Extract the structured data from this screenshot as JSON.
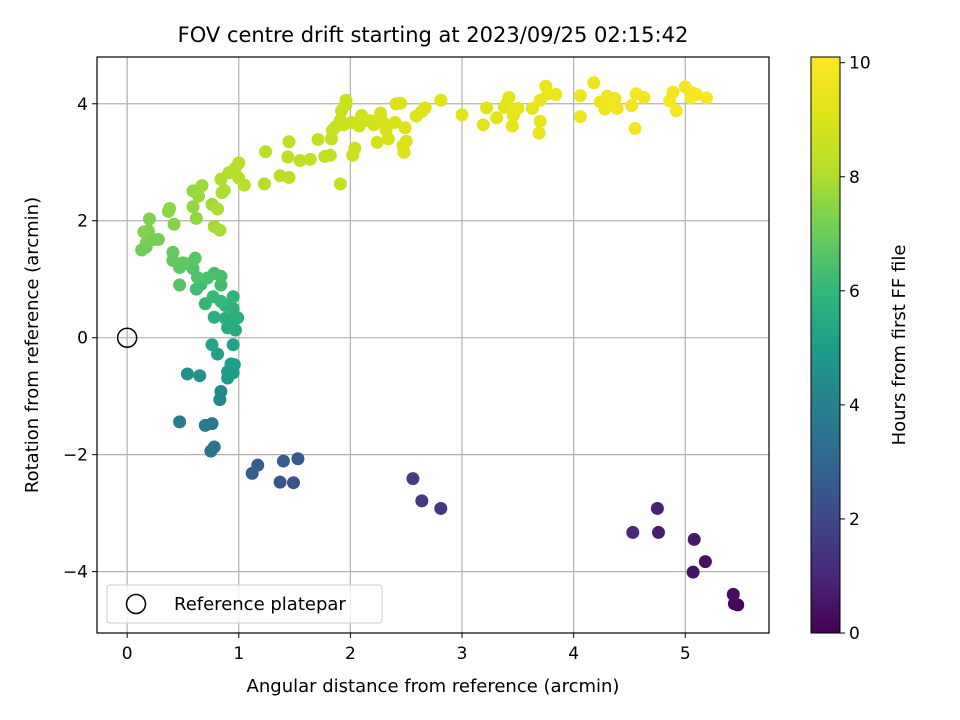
{
  "chart_data": {
    "type": "scatter",
    "title": "FOV centre drift starting at 2023/09/25 02:15:42",
    "xlabel": "Angular distance from reference (arcmin)",
    "ylabel": "Rotation from reference (arcmin)",
    "xlim": [
      -0.27,
      5.75
    ],
    "ylim": [
      -5.05,
      4.8
    ],
    "xticks": [
      0,
      1,
      2,
      3,
      4,
      5
    ],
    "yticks": [
      -4,
      -2,
      0,
      2,
      4
    ],
    "grid": true,
    "colormap": "viridis",
    "colorbar": {
      "label": "Hours from first FF file",
      "min": 0,
      "max": 10.1,
      "ticks": [
        0,
        2,
        4,
        6,
        8,
        10
      ]
    },
    "legend": {
      "placement": "lower-left",
      "entries": [
        "Reference platepar"
      ]
    },
    "reference": {
      "x": 0,
      "y": 0
    },
    "points": [
      [
        5.47,
        -4.57,
        0.1
      ],
      [
        5.44,
        -4.55,
        0.2
      ],
      [
        5.43,
        -4.39,
        0.3
      ],
      [
        5.18,
        -3.83,
        0.45
      ],
      [
        5.07,
        -4.01,
        0.5
      ],
      [
        5.08,
        -3.45,
        0.6
      ],
      [
        4.76,
        -3.33,
        0.75
      ],
      [
        4.75,
        -2.92,
        0.85
      ],
      [
        4.53,
        -3.33,
        1.0
      ],
      [
        2.81,
        -2.92,
        1.4
      ],
      [
        2.64,
        -2.79,
        1.55
      ],
      [
        2.56,
        -2.41,
        1.7
      ],
      [
        1.49,
        -2.48,
        2.3
      ],
      [
        1.37,
        -2.47,
        2.4
      ],
      [
        1.53,
        -2.07,
        2.5
      ],
      [
        1.4,
        -2.11,
        2.6
      ],
      [
        1.17,
        -2.18,
        2.7
      ],
      [
        1.12,
        -2.32,
        2.8
      ],
      [
        0.78,
        -1.87,
        3.4
      ],
      [
        0.75,
        -1.94,
        3.5
      ],
      [
        0.76,
        -1.47,
        3.6
      ],
      [
        0.7,
        -1.5,
        3.7
      ],
      [
        0.47,
        -1.44,
        3.8
      ],
      [
        0.83,
        -1.06,
        4.2
      ],
      [
        0.84,
        -0.92,
        4.3
      ],
      [
        0.54,
        -0.62,
        4.5
      ],
      [
        0.65,
        -0.65,
        4.6
      ],
      [
        0.9,
        -0.69,
        4.8
      ],
      [
        0.95,
        -0.6,
        4.9
      ],
      [
        0.96,
        -0.46,
        5.0
      ],
      [
        0.93,
        -0.45,
        5.05
      ],
      [
        0.9,
        -0.58,
        5.1
      ],
      [
        0.81,
        -0.28,
        5.15
      ],
      [
        0.95,
        -0.12,
        5.2
      ],
      [
        0.76,
        -0.12,
        5.3
      ],
      [
        0.9,
        0.17,
        5.5
      ],
      [
        0.97,
        0.13,
        5.55
      ],
      [
        0.92,
        0.3,
        5.6
      ],
      [
        0.88,
        0.33,
        5.65
      ],
      [
        0.99,
        0.34,
        5.7
      ],
      [
        0.78,
        0.35,
        5.75
      ],
      [
        0.95,
        0.5,
        5.8
      ],
      [
        0.88,
        0.55,
        5.85
      ],
      [
        0.95,
        0.7,
        5.9
      ],
      [
        0.7,
        0.58,
        6.0
      ],
      [
        0.84,
        0.62,
        6.05
      ],
      [
        0.77,
        0.7,
        6.1
      ],
      [
        0.66,
        0.91,
        6.2
      ],
      [
        0.62,
        0.83,
        6.25
      ],
      [
        0.84,
        0.9,
        6.3
      ],
      [
        0.78,
        1.1,
        6.35
      ],
      [
        0.84,
        1.05,
        6.4
      ],
      [
        0.72,
        1.02,
        6.45
      ],
      [
        0.63,
        1.03,
        6.5
      ],
      [
        0.59,
        1.18,
        6.55
      ],
      [
        0.55,
        1.26,
        6.6
      ],
      [
        0.47,
        0.9,
        6.65
      ],
      [
        0.61,
        1.36,
        6.7
      ],
      [
        0.47,
        1.2,
        6.75
      ],
      [
        0.5,
        1.28,
        6.8
      ],
      [
        0.41,
        1.32,
        6.85
      ],
      [
        0.41,
        1.46,
        6.9
      ],
      [
        0.17,
        1.55,
        7.0
      ],
      [
        0.13,
        1.5,
        7.05
      ],
      [
        0.24,
        1.68,
        7.1
      ],
      [
        0.28,
        1.68,
        7.15
      ],
      [
        0.17,
        1.62,
        7.2
      ],
      [
        0.19,
        1.83,
        7.25
      ],
      [
        0.2,
        2.03,
        7.3
      ],
      [
        0.15,
        1.81,
        7.35
      ],
      [
        0.42,
        1.94,
        7.4
      ],
      [
        0.37,
        2.16,
        7.45
      ],
      [
        0.38,
        2.21,
        7.5
      ],
      [
        0.62,
        2.04,
        7.55
      ],
      [
        0.59,
        2.24,
        7.6
      ],
      [
        0.59,
        2.51,
        7.65
      ],
      [
        0.64,
        2.42,
        7.7
      ],
      [
        0.67,
        2.6,
        7.75
      ],
      [
        0.76,
        2.28,
        7.8
      ],
      [
        0.78,
        1.9,
        7.85
      ],
      [
        0.83,
        1.84,
        7.9
      ],
      [
        0.81,
        2.2,
        7.95
      ],
      [
        0.85,
        2.48,
        7.98
      ],
      [
        0.87,
        2.52,
        8.0
      ],
      [
        0.84,
        2.71,
        8.02
      ],
      [
        0.91,
        2.82,
        8.05
      ],
      [
        0.97,
        2.9,
        8.08
      ],
      [
        1.0,
        2.73,
        8.1
      ],
      [
        1.05,
        2.61,
        8.12
      ],
      [
        1.23,
        2.63,
        8.15
      ],
      [
        1.0,
        2.99,
        8.18
      ],
      [
        1.24,
        3.18,
        8.2
      ],
      [
        1.37,
        2.77,
        8.22
      ],
      [
        1.45,
        2.74,
        8.25
      ],
      [
        1.44,
        3.09,
        8.28
      ],
      [
        1.45,
        3.35,
        8.3
      ],
      [
        1.55,
        3.03,
        8.32
      ],
      [
        1.64,
        3.05,
        8.35
      ],
      [
        1.71,
        3.39,
        8.38
      ],
      [
        1.77,
        3.1,
        8.4
      ],
      [
        1.82,
        3.12,
        8.42
      ],
      [
        1.91,
        2.63,
        8.45
      ],
      [
        1.83,
        3.4,
        8.48
      ],
      [
        1.84,
        3.55,
        8.5
      ],
      [
        1.87,
        3.61,
        8.52
      ],
      [
        1.91,
        3.72,
        8.55
      ],
      [
        1.92,
        3.88,
        8.57
      ],
      [
        1.96,
        3.98,
        8.6
      ],
      [
        1.96,
        4.06,
        8.62
      ],
      [
        2.01,
        3.68,
        8.65
      ],
      [
        1.94,
        3.64,
        8.67
      ],
      [
        2.02,
        3.12,
        8.7
      ],
      [
        2.04,
        3.24,
        8.72
      ],
      [
        2.08,
        3.62,
        8.75
      ],
      [
        2.1,
        3.8,
        8.77
      ],
      [
        2.17,
        3.71,
        8.8
      ],
      [
        2.19,
        3.7,
        8.82
      ],
      [
        2.21,
        3.64,
        8.85
      ],
      [
        2.24,
        3.34,
        8.87
      ],
      [
        2.27,
        3.84,
        8.9
      ],
      [
        2.29,
        3.69,
        8.92
      ],
      [
        2.32,
        3.55,
        8.95
      ],
      [
        2.34,
        3.4,
        8.97
      ],
      [
        2.4,
        3.68,
        9.0
      ],
      [
        2.41,
        4.0,
        9.02
      ],
      [
        2.45,
        4.01,
        9.04
      ],
      [
        2.47,
        3.28,
        9.06
      ],
      [
        2.5,
        3.36,
        9.08
      ],
      [
        2.49,
        3.59,
        9.1
      ],
      [
        2.48,
        3.17,
        9.12
      ],
      [
        2.59,
        3.79,
        9.14
      ],
      [
        2.64,
        3.87,
        9.16
      ],
      [
        2.67,
        3.93,
        9.18
      ],
      [
        2.81,
        4.06,
        9.2
      ],
      [
        3.0,
        3.81,
        9.22
      ],
      [
        3.19,
        3.64,
        9.24
      ],
      [
        3.22,
        3.93,
        9.26
      ],
      [
        3.31,
        3.76,
        9.28
      ],
      [
        3.38,
        3.94,
        9.3
      ],
      [
        3.4,
        4.0,
        9.32
      ],
      [
        3.42,
        4.11,
        9.34
      ],
      [
        3.45,
        3.62,
        9.36
      ],
      [
        3.46,
        3.8,
        9.38
      ],
      [
        3.5,
        3.92,
        9.4
      ],
      [
        3.63,
        3.92,
        9.42
      ],
      [
        3.69,
        3.5,
        9.44
      ],
      [
        3.7,
        3.7,
        9.46
      ],
      [
        3.7,
        4.06,
        9.48
      ],
      [
        3.75,
        4.3,
        9.5
      ],
      [
        3.77,
        4.17,
        9.52
      ],
      [
        3.84,
        4.16,
        9.54
      ],
      [
        4.06,
        3.78,
        9.56
      ],
      [
        4.06,
        4.14,
        9.58
      ],
      [
        4.18,
        4.36,
        9.6
      ],
      [
        4.24,
        4.03,
        9.62
      ],
      [
        4.28,
        3.91,
        9.64
      ],
      [
        4.3,
        4.13,
        9.66
      ],
      [
        4.32,
        4.04,
        9.68
      ],
      [
        4.37,
        4.09,
        9.7
      ],
      [
        4.39,
        3.92,
        9.72
      ],
      [
        4.52,
        3.97,
        9.74
      ],
      [
        4.55,
        3.58,
        9.76
      ],
      [
        4.56,
        4.17,
        9.78
      ],
      [
        4.63,
        4.11,
        9.8
      ],
      [
        4.92,
        3.88,
        9.82
      ],
      [
        4.86,
        4.05,
        9.84
      ],
      [
        4.89,
        4.2,
        9.86
      ],
      [
        5.0,
        4.29,
        9.88
      ],
      [
        5.05,
        4.1,
        9.9
      ],
      [
        5.06,
        4.19,
        9.92
      ],
      [
        5.1,
        4.16,
        9.94
      ],
      [
        5.19,
        4.1,
        9.96
      ]
    ]
  }
}
